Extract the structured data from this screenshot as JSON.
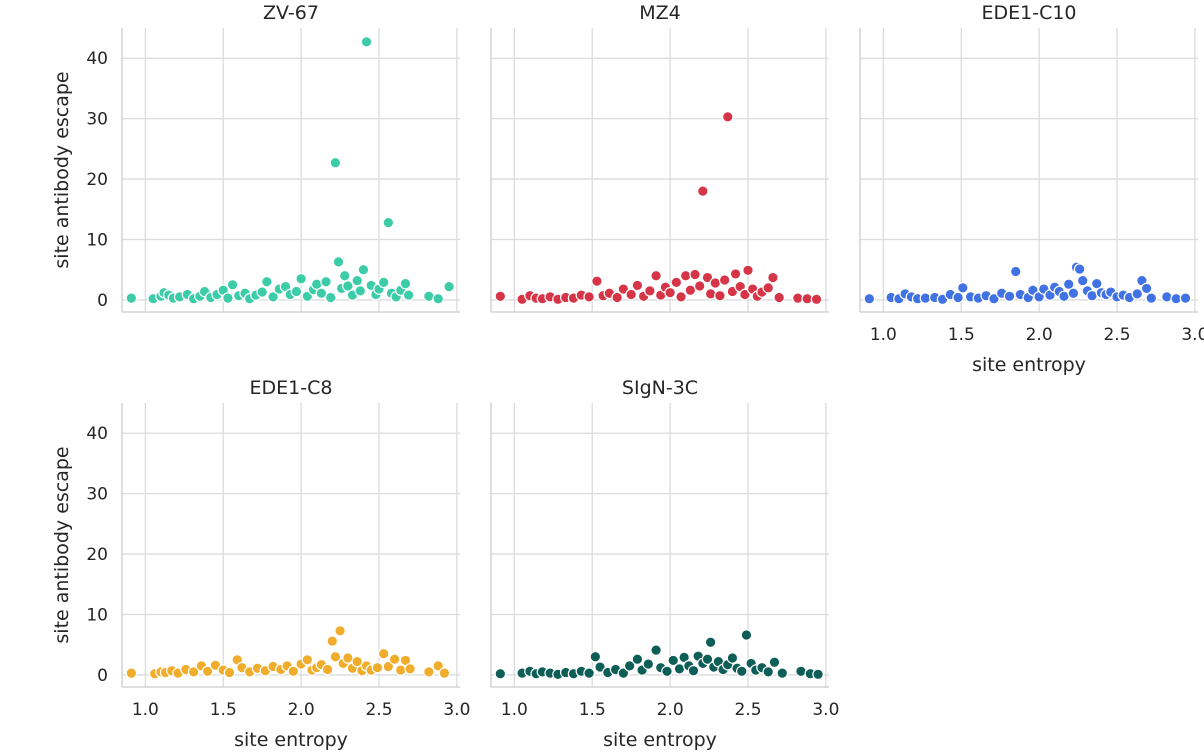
{
  "chart_data": {
    "type": "scatter",
    "xlabel": "site entropy",
    "ylabel": "site antibody escape",
    "xlim": [
      0.85,
      3.02
    ],
    "ylim": [
      -2,
      45
    ],
    "xticks": [
      "1.0",
      "1.5",
      "2.0",
      "2.5",
      "3.0"
    ],
    "yticks": [
      "0",
      "10",
      "20",
      "30",
      "40"
    ],
    "grid": true,
    "panels": [
      {
        "title": "ZV-67",
        "color": "#3dcca8",
        "points": [
          [
            0.91,
            0.3
          ],
          [
            1.05,
            0.2
          ],
          [
            1.1,
            0.6
          ],
          [
            1.12,
            1.2
          ],
          [
            1.15,
            0.8
          ],
          [
            1.18,
            0.3
          ],
          [
            1.22,
            0.5
          ],
          [
            1.27,
            0.9
          ],
          [
            1.31,
            0.2
          ],
          [
            1.35,
            0.6
          ],
          [
            1.38,
            1.4
          ],
          [
            1.42,
            0.4
          ],
          [
            1.46,
            0.9
          ],
          [
            1.5,
            1.6
          ],
          [
            1.53,
            0.3
          ],
          [
            1.56,
            2.5
          ],
          [
            1.6,
            0.7
          ],
          [
            1.64,
            1.1
          ],
          [
            1.67,
            0.2
          ],
          [
            1.71,
            0.8
          ],
          [
            1.75,
            1.3
          ],
          [
            1.78,
            3.0
          ],
          [
            1.82,
            0.5
          ],
          [
            1.86,
            1.8
          ],
          [
            1.9,
            2.2
          ],
          [
            1.93,
            0.9
          ],
          [
            1.97,
            1.4
          ],
          [
            2.0,
            3.5
          ],
          [
            2.04,
            0.6
          ],
          [
            2.08,
            1.7
          ],
          [
            2.1,
            2.6
          ],
          [
            2.13,
            1.1
          ],
          [
            2.16,
            3.0
          ],
          [
            2.19,
            0.4
          ],
          [
            2.22,
            22.7
          ],
          [
            2.24,
            6.3
          ],
          [
            2.26,
            1.9
          ],
          [
            2.28,
            4.0
          ],
          [
            2.3,
            2.3
          ],
          [
            2.33,
            0.8
          ],
          [
            2.36,
            3.2
          ],
          [
            2.38,
            1.5
          ],
          [
            2.4,
            5.0
          ],
          [
            2.42,
            42.7
          ],
          [
            2.45,
            2.4
          ],
          [
            2.48,
            0.9
          ],
          [
            2.5,
            1.8
          ],
          [
            2.53,
            2.9
          ],
          [
            2.56,
            12.8
          ],
          [
            2.58,
            1.1
          ],
          [
            2.61,
            0.5
          ],
          [
            2.64,
            1.6
          ],
          [
            2.67,
            2.7
          ],
          [
            2.69,
            0.8
          ],
          [
            2.82,
            0.6
          ],
          [
            2.88,
            0.2
          ],
          [
            2.95,
            2.2
          ]
        ]
      },
      {
        "title": "MZ4",
        "color": "#d63447",
        "points": [
          [
            0.91,
            0.6
          ],
          [
            1.05,
            0.1
          ],
          [
            1.1,
            0.7
          ],
          [
            1.14,
            0.3
          ],
          [
            1.18,
            0.2
          ],
          [
            1.23,
            0.5
          ],
          [
            1.28,
            0.1
          ],
          [
            1.33,
            0.4
          ],
          [
            1.38,
            0.3
          ],
          [
            1.43,
            0.8
          ],
          [
            1.48,
            0.5
          ],
          [
            1.53,
            3.1
          ],
          [
            1.57,
            0.7
          ],
          [
            1.61,
            1.1
          ],
          [
            1.66,
            0.4
          ],
          [
            1.7,
            1.8
          ],
          [
            1.75,
            0.9
          ],
          [
            1.79,
            2.4
          ],
          [
            1.83,
            0.6
          ],
          [
            1.87,
            1.5
          ],
          [
            1.91,
            4.0
          ],
          [
            1.94,
            0.8
          ],
          [
            1.97,
            2.1
          ],
          [
            2.0,
            1.2
          ],
          [
            2.04,
            2.9
          ],
          [
            2.07,
            0.5
          ],
          [
            2.1,
            4.0
          ],
          [
            2.13,
            1.6
          ],
          [
            2.16,
            4.2
          ],
          [
            2.19,
            2.3
          ],
          [
            2.21,
            18.0
          ],
          [
            2.24,
            3.7
          ],
          [
            2.26,
            1.0
          ],
          [
            2.29,
            2.8
          ],
          [
            2.32,
            0.7
          ],
          [
            2.35,
            3.3
          ],
          [
            2.37,
            30.3
          ],
          [
            2.4,
            1.4
          ],
          [
            2.42,
            4.3
          ],
          [
            2.45,
            2.2
          ],
          [
            2.48,
            0.9
          ],
          [
            2.5,
            4.9
          ],
          [
            2.53,
            1.8
          ],
          [
            2.56,
            0.6
          ],
          [
            2.59,
            1.3
          ],
          [
            2.63,
            2.0
          ],
          [
            2.66,
            3.7
          ],
          [
            2.7,
            0.4
          ],
          [
            2.82,
            0.3
          ],
          [
            2.88,
            0.2
          ],
          [
            2.94,
            0.1
          ]
        ]
      },
      {
        "title": "EDE1-C10",
        "color": "#4172e3",
        "points": [
          [
            0.91,
            0.2
          ],
          [
            1.05,
            0.4
          ],
          [
            1.1,
            0.2
          ],
          [
            1.14,
            1.0
          ],
          [
            1.18,
            0.5
          ],
          [
            1.22,
            0.2
          ],
          [
            1.27,
            0.3
          ],
          [
            1.33,
            0.4
          ],
          [
            1.38,
            0.1
          ],
          [
            1.43,
            0.9
          ],
          [
            1.48,
            0.4
          ],
          [
            1.51,
            2.0
          ],
          [
            1.56,
            0.5
          ],
          [
            1.61,
            0.3
          ],
          [
            1.66,
            0.7
          ],
          [
            1.71,
            0.2
          ],
          [
            1.76,
            1.1
          ],
          [
            1.81,
            0.6
          ],
          [
            1.85,
            4.7
          ],
          [
            1.88,
            0.9
          ],
          [
            1.93,
            0.4
          ],
          [
            1.96,
            1.6
          ],
          [
            2.0,
            0.5
          ],
          [
            2.03,
            1.8
          ],
          [
            2.07,
            0.8
          ],
          [
            2.1,
            2.1
          ],
          [
            2.13,
            1.4
          ],
          [
            2.16,
            0.6
          ],
          [
            2.19,
            2.6
          ],
          [
            2.22,
            1.1
          ],
          [
            2.24,
            5.4
          ],
          [
            2.26,
            5.1
          ],
          [
            2.28,
            3.2
          ],
          [
            2.31,
            1.5
          ],
          [
            2.34,
            0.7
          ],
          [
            2.37,
            2.7
          ],
          [
            2.4,
            1.2
          ],
          [
            2.43,
            0.9
          ],
          [
            2.46,
            1.3
          ],
          [
            2.5,
            0.5
          ],
          [
            2.54,
            0.8
          ],
          [
            2.58,
            0.4
          ],
          [
            2.63,
            1.0
          ],
          [
            2.66,
            3.2
          ],
          [
            2.69,
            1.9
          ],
          [
            2.72,
            0.3
          ],
          [
            2.82,
            0.5
          ],
          [
            2.88,
            0.2
          ],
          [
            2.94,
            0.3
          ]
        ]
      },
      {
        "title": "EDE1-C8",
        "color": "#f0ad2c",
        "points": [
          [
            0.91,
            0.3
          ],
          [
            1.06,
            0.2
          ],
          [
            1.1,
            0.5
          ],
          [
            1.13,
            0.4
          ],
          [
            1.17,
            0.7
          ],
          [
            1.21,
            0.3
          ],
          [
            1.26,
            0.9
          ],
          [
            1.31,
            0.5
          ],
          [
            1.36,
            1.5
          ],
          [
            1.4,
            0.6
          ],
          [
            1.45,
            1.6
          ],
          [
            1.5,
            0.8
          ],
          [
            1.54,
            0.4
          ],
          [
            1.59,
            2.5
          ],
          [
            1.62,
            1.2
          ],
          [
            1.67,
            0.5
          ],
          [
            1.72,
            1.1
          ],
          [
            1.77,
            0.7
          ],
          [
            1.82,
            1.4
          ],
          [
            1.87,
            0.9
          ],
          [
            1.91,
            1.5
          ],
          [
            1.95,
            0.6
          ],
          [
            2.0,
            1.8
          ],
          [
            2.04,
            2.5
          ],
          [
            2.07,
            0.8
          ],
          [
            2.1,
            1.2
          ],
          [
            2.13,
            1.7
          ],
          [
            2.17,
            0.9
          ],
          [
            2.2,
            5.6
          ],
          [
            2.22,
            3.0
          ],
          [
            2.25,
            7.3
          ],
          [
            2.27,
            1.9
          ],
          [
            2.3,
            2.8
          ],
          [
            2.33,
            1.1
          ],
          [
            2.36,
            2.2
          ],
          [
            2.39,
            0.7
          ],
          [
            2.42,
            1.5
          ],
          [
            2.45,
            0.8
          ],
          [
            2.49,
            1.2
          ],
          [
            2.53,
            3.5
          ],
          [
            2.56,
            1.4
          ],
          [
            2.6,
            2.6
          ],
          [
            2.64,
            0.8
          ],
          [
            2.67,
            2.4
          ],
          [
            2.7,
            1.0
          ],
          [
            2.82,
            0.5
          ],
          [
            2.88,
            1.5
          ],
          [
            2.92,
            0.3
          ]
        ]
      },
      {
        "title": "SIgN-3C",
        "color": "#0e5e58",
        "points": [
          [
            0.91,
            0.2
          ],
          [
            1.05,
            0.3
          ],
          [
            1.1,
            0.6
          ],
          [
            1.14,
            0.2
          ],
          [
            1.18,
            0.5
          ],
          [
            1.23,
            0.3
          ],
          [
            1.28,
            0.1
          ],
          [
            1.33,
            0.4
          ],
          [
            1.38,
            0.2
          ],
          [
            1.43,
            0.6
          ],
          [
            1.48,
            0.3
          ],
          [
            1.52,
            3.0
          ],
          [
            1.55,
            1.3
          ],
          [
            1.6,
            0.4
          ],
          [
            1.65,
            0.9
          ],
          [
            1.7,
            0.3
          ],
          [
            1.74,
            1.5
          ],
          [
            1.79,
            2.6
          ],
          [
            1.82,
            0.8
          ],
          [
            1.86,
            1.8
          ],
          [
            1.91,
            4.1
          ],
          [
            1.94,
            1.2
          ],
          [
            1.98,
            0.6
          ],
          [
            2.02,
            2.4
          ],
          [
            2.06,
            1.0
          ],
          [
            2.09,
            2.9
          ],
          [
            2.12,
            1.5
          ],
          [
            2.15,
            0.7
          ],
          [
            2.18,
            3.1
          ],
          [
            2.21,
            1.9
          ],
          [
            2.24,
            2.6
          ],
          [
            2.26,
            5.4
          ],
          [
            2.28,
            1.3
          ],
          [
            2.31,
            2.2
          ],
          [
            2.34,
            0.9
          ],
          [
            2.37,
            1.7
          ],
          [
            2.4,
            2.8
          ],
          [
            2.43,
            1.1
          ],
          [
            2.46,
            0.6
          ],
          [
            2.49,
            6.6
          ],
          [
            2.52,
            1.9
          ],
          [
            2.55,
            0.8
          ],
          [
            2.59,
            1.2
          ],
          [
            2.63,
            0.5
          ],
          [
            2.67,
            2.1
          ],
          [
            2.72,
            0.3
          ],
          [
            2.84,
            0.6
          ],
          [
            2.9,
            0.2
          ],
          [
            2.95,
            0.1
          ]
        ]
      }
    ]
  }
}
